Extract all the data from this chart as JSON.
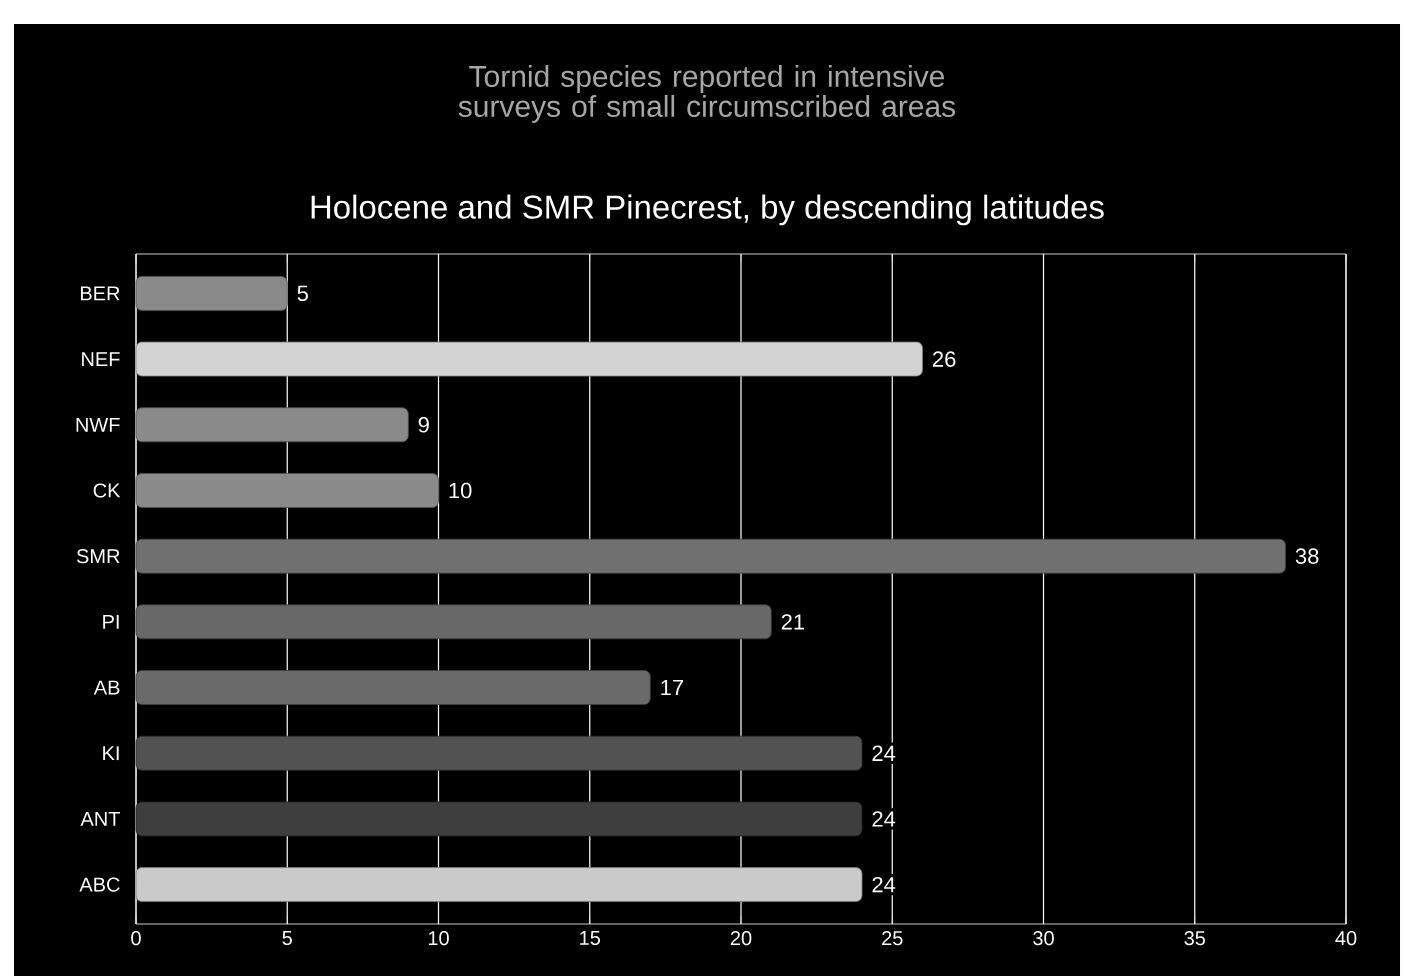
{
  "chart_data": {
    "type": "bar",
    "orientation": "horizontal",
    "title": "Tornid species reported in intensive surveys of small circumscribed areas",
    "subtitle": "Holocene and SMR Pinecrest, by descending latitudes",
    "categories": [
      "BER",
      "NEF",
      "NWF",
      "CK",
      "SMR",
      "PI",
      "AB",
      "KI",
      "ANT",
      "ABC"
    ],
    "values": [
      5,
      26,
      9,
      10,
      38,
      21,
      17,
      24,
      24,
      24
    ],
    "colors": [
      "#8a8a8a",
      "#d2d2d2",
      "#8a8a8a",
      "#8a8a8a",
      "#707070",
      "#686868",
      "#6a6a6a",
      "#525252",
      "#3e3e3e",
      "#cacaca"
    ],
    "xlim": [
      0,
      40
    ],
    "xticks": [
      0,
      5,
      10,
      15,
      20,
      25,
      30,
      35,
      40
    ],
    "grid": "x",
    "data_labels": true
  }
}
